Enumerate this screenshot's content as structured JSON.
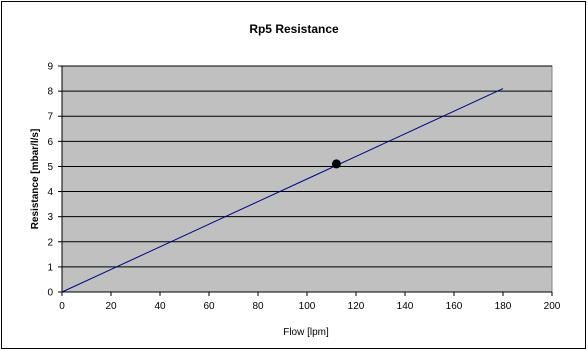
{
  "chart_data": {
    "type": "line",
    "title": "Rp5 Resistance",
    "xlabel": "Flow [lpm]",
    "ylabel": "Resistance [mbar/l/s]",
    "xlim": [
      0,
      200
    ],
    "ylim": [
      0,
      9
    ],
    "x_ticks": [
      0,
      20,
      40,
      60,
      80,
      100,
      120,
      140,
      160,
      180,
      200
    ],
    "y_ticks": [
      0,
      1,
      2,
      3,
      4,
      5,
      6,
      7,
      8,
      9
    ],
    "grid": "horizontal",
    "legend": "none",
    "series": [
      {
        "kind": "line",
        "color": "#000080",
        "x": [
          0,
          20,
          40,
          60,
          80,
          100,
          120,
          140,
          160,
          180
        ],
        "y": [
          0,
          0.9,
          1.8,
          2.7,
          3.6,
          4.5,
          5.4,
          6.3,
          7.2,
          8.1
        ]
      },
      {
        "kind": "point",
        "color": "#000000",
        "x": [
          112
        ],
        "y": [
          5.1
        ]
      }
    ],
    "plot_background": "#c0c0c0"
  }
}
